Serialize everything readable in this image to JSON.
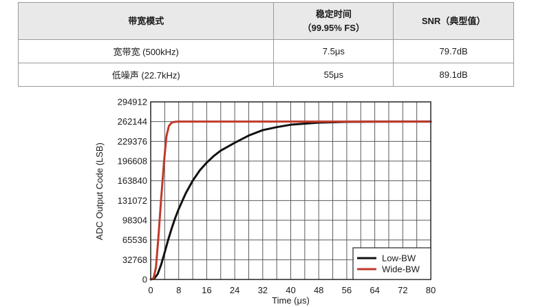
{
  "table": {
    "headers": [
      "带宽模式",
      "稳定时间",
      "（99.95% FS）",
      "SNR（典型值）"
    ],
    "rows": [
      {
        "mode": "宽带宽 (500kHz)",
        "settling": "7.5μs",
        "snr": "79.7dB"
      },
      {
        "mode": "低噪声 (22.7kHz)",
        "settling": "55μs",
        "snr": "89.1dB"
      }
    ]
  },
  "chart_data": {
    "type": "line",
    "xlabel": "Time (μs)",
    "ylabel": "ADC Output Code (LSB)",
    "xlim": [
      0,
      80
    ],
    "ylim": [
      0,
      294912
    ],
    "xticks": [
      0,
      8,
      16,
      24,
      32,
      40,
      48,
      56,
      64,
      72,
      80
    ],
    "yticks": [
      0,
      32768,
      65536,
      98304,
      131072,
      163840,
      196608,
      229376,
      262144,
      294912
    ],
    "grid": true,
    "legend_position": "bottom-right",
    "series": [
      {
        "name": "Low-BW",
        "color": "#111111",
        "x": [
          0,
          1,
          2,
          3,
          4,
          5,
          6,
          7,
          8,
          10,
          12,
          14,
          16,
          18,
          20,
          24,
          28,
          32,
          36,
          40,
          48,
          56,
          64,
          72,
          80
        ],
        "y": [
          0,
          1500,
          9000,
          25000,
          45000,
          66000,
          85000,
          102000,
          117000,
          143000,
          164000,
          181000,
          194000,
          205000,
          214000,
          227000,
          239000,
          248000,
          253000,
          257000,
          260500,
          261700,
          262000,
          262144,
          262144
        ]
      },
      {
        "name": "Wide-BW",
        "color": "#c0392b",
        "x": [
          0,
          0.8,
          1.5,
          2.2,
          3,
          3.8,
          4.5,
          5.2,
          6,
          7,
          8,
          80
        ],
        "y": [
          0,
          2000,
          20000,
          70000,
          135000,
          195000,
          238000,
          255000,
          260500,
          261900,
          262144,
          262144
        ]
      }
    ]
  }
}
